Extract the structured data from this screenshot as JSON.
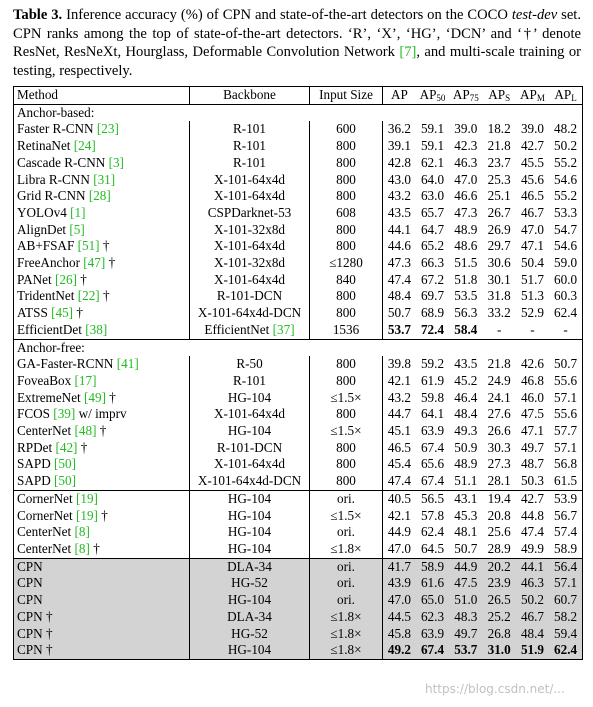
{
  "caption": {
    "label": "Table 3.",
    "text1": " Inference accuracy (%) of CPN and state-of-the-art detectors on the COCO ",
    "testdev": "test-dev",
    "text2": " set. CPN ranks among the top of state-of-the-art detectors. ‘R’, ‘X’, ‘HG’, ‘DCN’ and ‘†’ denote ResNet, ResNeXt, Hourglass, Deformable Convolution Network ",
    "ref": "[7]",
    "text3": ", and multi-scale training or testing, respectively."
  },
  "table": {
    "headers": {
      "method": "Method",
      "backbone": "Backbone",
      "input": "Input Size",
      "ap": "AP",
      "ap50_main": "AP",
      "ap50_sub": "50",
      "ap75_main": "AP",
      "ap75_sub": "75",
      "aps_main": "AP",
      "aps_sub": "S",
      "apm_main": "AP",
      "apm_sub": "M",
      "apl_main": "AP",
      "apl_sub": "L"
    },
    "sections": [
      {
        "title": "Anchor-based:",
        "groups": [
          [
            {
              "name": "Faster R-CNN ",
              "ref": "[23]",
              "suffix": "",
              "backbone": "R-101",
              "input": "600",
              "vals": [
                "36.2",
                "59.1",
                "39.0",
                "18.2",
                "39.0",
                "48.2"
              ]
            },
            {
              "name": "RetinaNet ",
              "ref": "[24]",
              "suffix": "",
              "backbone": "R-101",
              "input": "800",
              "vals": [
                "39.1",
                "59.1",
                "42.3",
                "21.8",
                "42.7",
                "50.2"
              ]
            },
            {
              "name": "Cascade R-CNN ",
              "ref": "[3]",
              "suffix": "",
              "backbone": "R-101",
              "input": "800",
              "vals": [
                "42.8",
                "62.1",
                "46.3",
                "23.7",
                "45.5",
                "55.2"
              ]
            },
            {
              "name": "Libra R-CNN ",
              "ref": "[31]",
              "suffix": "",
              "backbone": "X-101-64x4d",
              "input": "800",
              "vals": [
                "43.0",
                "64.0",
                "47.0",
                "25.3",
                "45.6",
                "54.6"
              ]
            },
            {
              "name": "Grid R-CNN ",
              "ref": "[28]",
              "suffix": "",
              "backbone": "X-101-64x4d",
              "input": "800",
              "vals": [
                "43.2",
                "63.0",
                "46.6",
                "25.1",
                "46.5",
                "55.2"
              ]
            },
            {
              "name": "YOLOv4 ",
              "ref": "[1]",
              "suffix": "",
              "backbone": "CSPDarknet-53",
              "input": "608",
              "vals": [
                "43.5",
                "65.7",
                "47.3",
                "26.7",
                "46.7",
                "53.3"
              ]
            },
            {
              "name": "AlignDet ",
              "ref": "[5]",
              "suffix": "",
              "backbone": "X-101-32x8d",
              "input": "800",
              "vals": [
                "44.1",
                "64.7",
                "48.9",
                "26.9",
                "47.0",
                "54.7"
              ]
            },
            {
              "name": "AB+FSAF ",
              "ref": "[51]",
              "suffix": " †",
              "backbone": "X-101-64x4d",
              "input": "800",
              "vals": [
                "44.6",
                "65.2",
                "48.6",
                "29.7",
                "47.1",
                "54.6"
              ]
            },
            {
              "name": "FreeAnchor ",
              "ref": "[47]",
              "suffix": " †",
              "backbone": "X-101-32x8d",
              "input": "≤1280",
              "vals": [
                "47.3",
                "66.3",
                "51.5",
                "30.6",
                "50.4",
                "59.0"
              ]
            },
            {
              "name": "PANet ",
              "ref": "[26]",
              "suffix": " †",
              "backbone": "X-101-64x4d",
              "input": "840",
              "vals": [
                "47.4",
                "67.2",
                "51.8",
                "30.1",
                "51.7",
                "60.0"
              ]
            },
            {
              "name": "TridentNet ",
              "ref": "[22]",
              "suffix": " †",
              "backbone": "R-101-DCN",
              "input": "800",
              "vals": [
                "48.4",
                "69.7",
                "53.5",
                "31.8",
                "51.3",
                "60.3"
              ]
            },
            {
              "name": "ATSS ",
              "ref": "[45]",
              "suffix": " †",
              "backbone": "X-101-64x4d-DCN",
              "input": "800",
              "vals": [
                "50.7",
                "68.9",
                "56.3",
                "33.2",
                "52.9",
                "62.4"
              ]
            },
            {
              "name": "EfficientDet ",
              "ref": "[38]",
              "suffix": "",
              "backbone": "EfficientNet ",
              "backbone_ref": "[37]",
              "input": "1536",
              "vals": [
                "53.7",
                "72.4",
                "58.4",
                "-",
                "-",
                "-"
              ],
              "bold": [
                0,
                1,
                2
              ]
            }
          ]
        ]
      },
      {
        "title": "Anchor-free:",
        "groups": [
          [
            {
              "name": "GA-Faster-RCNN ",
              "ref": "[41]",
              "suffix": "",
              "backbone": "R-50",
              "input": "800",
              "vals": [
                "39.8",
                "59.2",
                "43.5",
                "21.8",
                "42.6",
                "50.7"
              ]
            },
            {
              "name": "FoveaBox ",
              "ref": "[17]",
              "suffix": "",
              "backbone": "R-101",
              "input": "800",
              "vals": [
                "42.1",
                "61.9",
                "45.2",
                "24.9",
                "46.8",
                "55.6"
              ]
            },
            {
              "name": "ExtremeNet ",
              "ref": "[49]",
              "suffix": " †",
              "backbone": "HG-104",
              "input": "≤1.5×",
              "vals": [
                "43.2",
                "59.8",
                "46.4",
                "24.1",
                "46.0",
                "57.1"
              ]
            },
            {
              "name": "FCOS ",
              "ref": "[39]",
              "suffix": " w/ imprv",
              "backbone": "X-101-64x4d",
              "input": "800",
              "vals": [
                "44.7",
                "64.1",
                "48.4",
                "27.6",
                "47.5",
                "55.6"
              ]
            },
            {
              "name": "CenterNet ",
              "ref": "[48]",
              "suffix": " †",
              "backbone": "HG-104",
              "input": "≤1.5×",
              "vals": [
                "45.1",
                "63.9",
                "49.3",
                "26.6",
                "47.1",
                "57.7"
              ]
            },
            {
              "name": "RPDet ",
              "ref": "[42]",
              "suffix": " †",
              "backbone": "R-101-DCN",
              "input": "800",
              "vals": [
                "46.5",
                "67.4",
                "50.9",
                "30.3",
                "49.7",
                "57.1"
              ]
            },
            {
              "name": "SAPD ",
              "ref": "[50]",
              "suffix": "",
              "backbone": "X-101-64x4d",
              "input": "800",
              "vals": [
                "45.4",
                "65.6",
                "48.9",
                "27.3",
                "48.7",
                "56.8"
              ]
            },
            {
              "name": "SAPD ",
              "ref": "[50]",
              "suffix": "",
              "backbone": "X-101-64x4d-DCN",
              "input": "800",
              "vals": [
                "47.4",
                "67.4",
                "51.1",
                "28.1",
                "50.3",
                "61.5"
              ]
            }
          ],
          [
            {
              "name": "CornerNet ",
              "ref": "[19]",
              "suffix": "",
              "backbone": "HG-104",
              "input": "ori.",
              "vals": [
                "40.5",
                "56.5",
                "43.1",
                "19.4",
                "42.7",
                "53.9"
              ]
            },
            {
              "name": "CornerNet ",
              "ref": "[19]",
              "suffix": " †",
              "backbone": "HG-104",
              "input": "≤1.5×",
              "vals": [
                "42.1",
                "57.8",
                "45.3",
                "20.8",
                "44.8",
                "56.7"
              ]
            },
            {
              "name": "CenterNet ",
              "ref": "[8]",
              "suffix": "",
              "backbone": "HG-104",
              "input": "ori.",
              "vals": [
                "44.9",
                "62.4",
                "48.1",
                "25.6",
                "47.4",
                "57.4"
              ]
            },
            {
              "name": "CenterNet ",
              "ref": "[8]",
              "suffix": " †",
              "backbone": "HG-104",
              "input": "≤1.8×",
              "vals": [
                "47.0",
                "64.5",
                "50.7",
                "28.9",
                "49.9",
                "58.9"
              ]
            }
          ]
        ]
      }
    ],
    "cpn_rows": [
      {
        "name": "CPN",
        "suffix": "",
        "backbone": "DLA-34",
        "input": "ori.",
        "vals": [
          "41.7",
          "58.9",
          "44.9",
          "20.2",
          "44.1",
          "56.4"
        ]
      },
      {
        "name": "CPN",
        "suffix": "",
        "backbone": "HG-52",
        "input": "ori.",
        "vals": [
          "43.9",
          "61.6",
          "47.5",
          "23.9",
          "46.3",
          "57.1"
        ]
      },
      {
        "name": "CPN",
        "suffix": "",
        "backbone": "HG-104",
        "input": "ori.",
        "vals": [
          "47.0",
          "65.0",
          "51.0",
          "26.5",
          "50.2",
          "60.7"
        ]
      },
      {
        "name": "CPN",
        "suffix": " †",
        "backbone": "DLA-34",
        "input": "≤1.8×",
        "vals": [
          "44.5",
          "62.3",
          "48.3",
          "25.2",
          "46.7",
          "58.2"
        ]
      },
      {
        "name": "CPN",
        "suffix": " †",
        "backbone": "HG-52",
        "input": "≤1.8×",
        "vals": [
          "45.8",
          "63.9",
          "49.7",
          "26.8",
          "48.4",
          "59.4"
        ]
      },
      {
        "name": "CPN",
        "suffix": " †",
        "backbone": "HG-104",
        "input": "≤1.8×",
        "vals": [
          "49.2",
          "67.4",
          "53.7",
          "31.0",
          "51.9",
          "62.4"
        ],
        "bold": [
          0,
          1,
          2,
          3,
          4,
          5
        ]
      }
    ]
  },
  "watermark": "https://blog.csdn.net/..."
}
